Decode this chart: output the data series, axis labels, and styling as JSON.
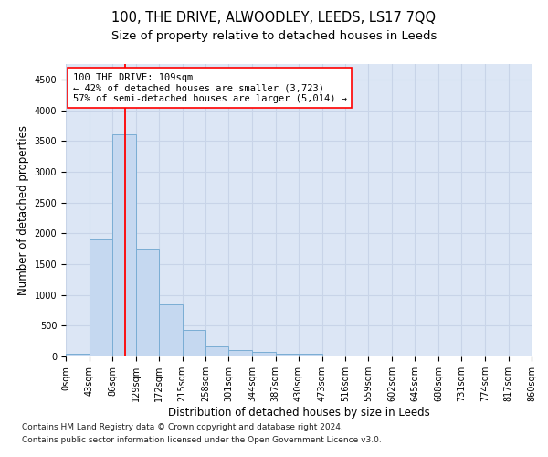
{
  "title_line1": "100, THE DRIVE, ALWOODLEY, LEEDS, LS17 7QQ",
  "title_line2": "Size of property relative to detached houses in Leeds",
  "xlabel": "Distribution of detached houses by size in Leeds",
  "ylabel": "Number of detached properties",
  "bar_edges": [
    0,
    43,
    86,
    129,
    172,
    215,
    258,
    301,
    344,
    387,
    430,
    473,
    516,
    559,
    602,
    645,
    688,
    731,
    774,
    817,
    860
  ],
  "bar_heights": [
    50,
    1900,
    3600,
    1750,
    850,
    430,
    170,
    110,
    70,
    50,
    50,
    15,
    8,
    5,
    4,
    3,
    3,
    2,
    2,
    2
  ],
  "bar_color": "#c5d8f0",
  "bar_edge_color": "#7aadd4",
  "grid_color": "#c8d4e8",
  "background_color": "#dce6f5",
  "red_line_x": 109,
  "annotation_text": "100 THE DRIVE: 109sqm\n← 42% of detached houses are smaller (3,723)\n57% of semi-detached houses are larger (5,014) →",
  "ylim": [
    0,
    4750
  ],
  "yticks": [
    0,
    500,
    1000,
    1500,
    2000,
    2500,
    3000,
    3500,
    4000,
    4500
  ],
  "footnote_line1": "Contains HM Land Registry data © Crown copyright and database right 2024.",
  "footnote_line2": "Contains public sector information licensed under the Open Government Licence v3.0.",
  "title_fontsize": 10.5,
  "subtitle_fontsize": 9.5,
  "axis_label_fontsize": 8.5,
  "tick_fontsize": 7,
  "annotation_fontsize": 7.5,
  "footnote_fontsize": 6.5
}
